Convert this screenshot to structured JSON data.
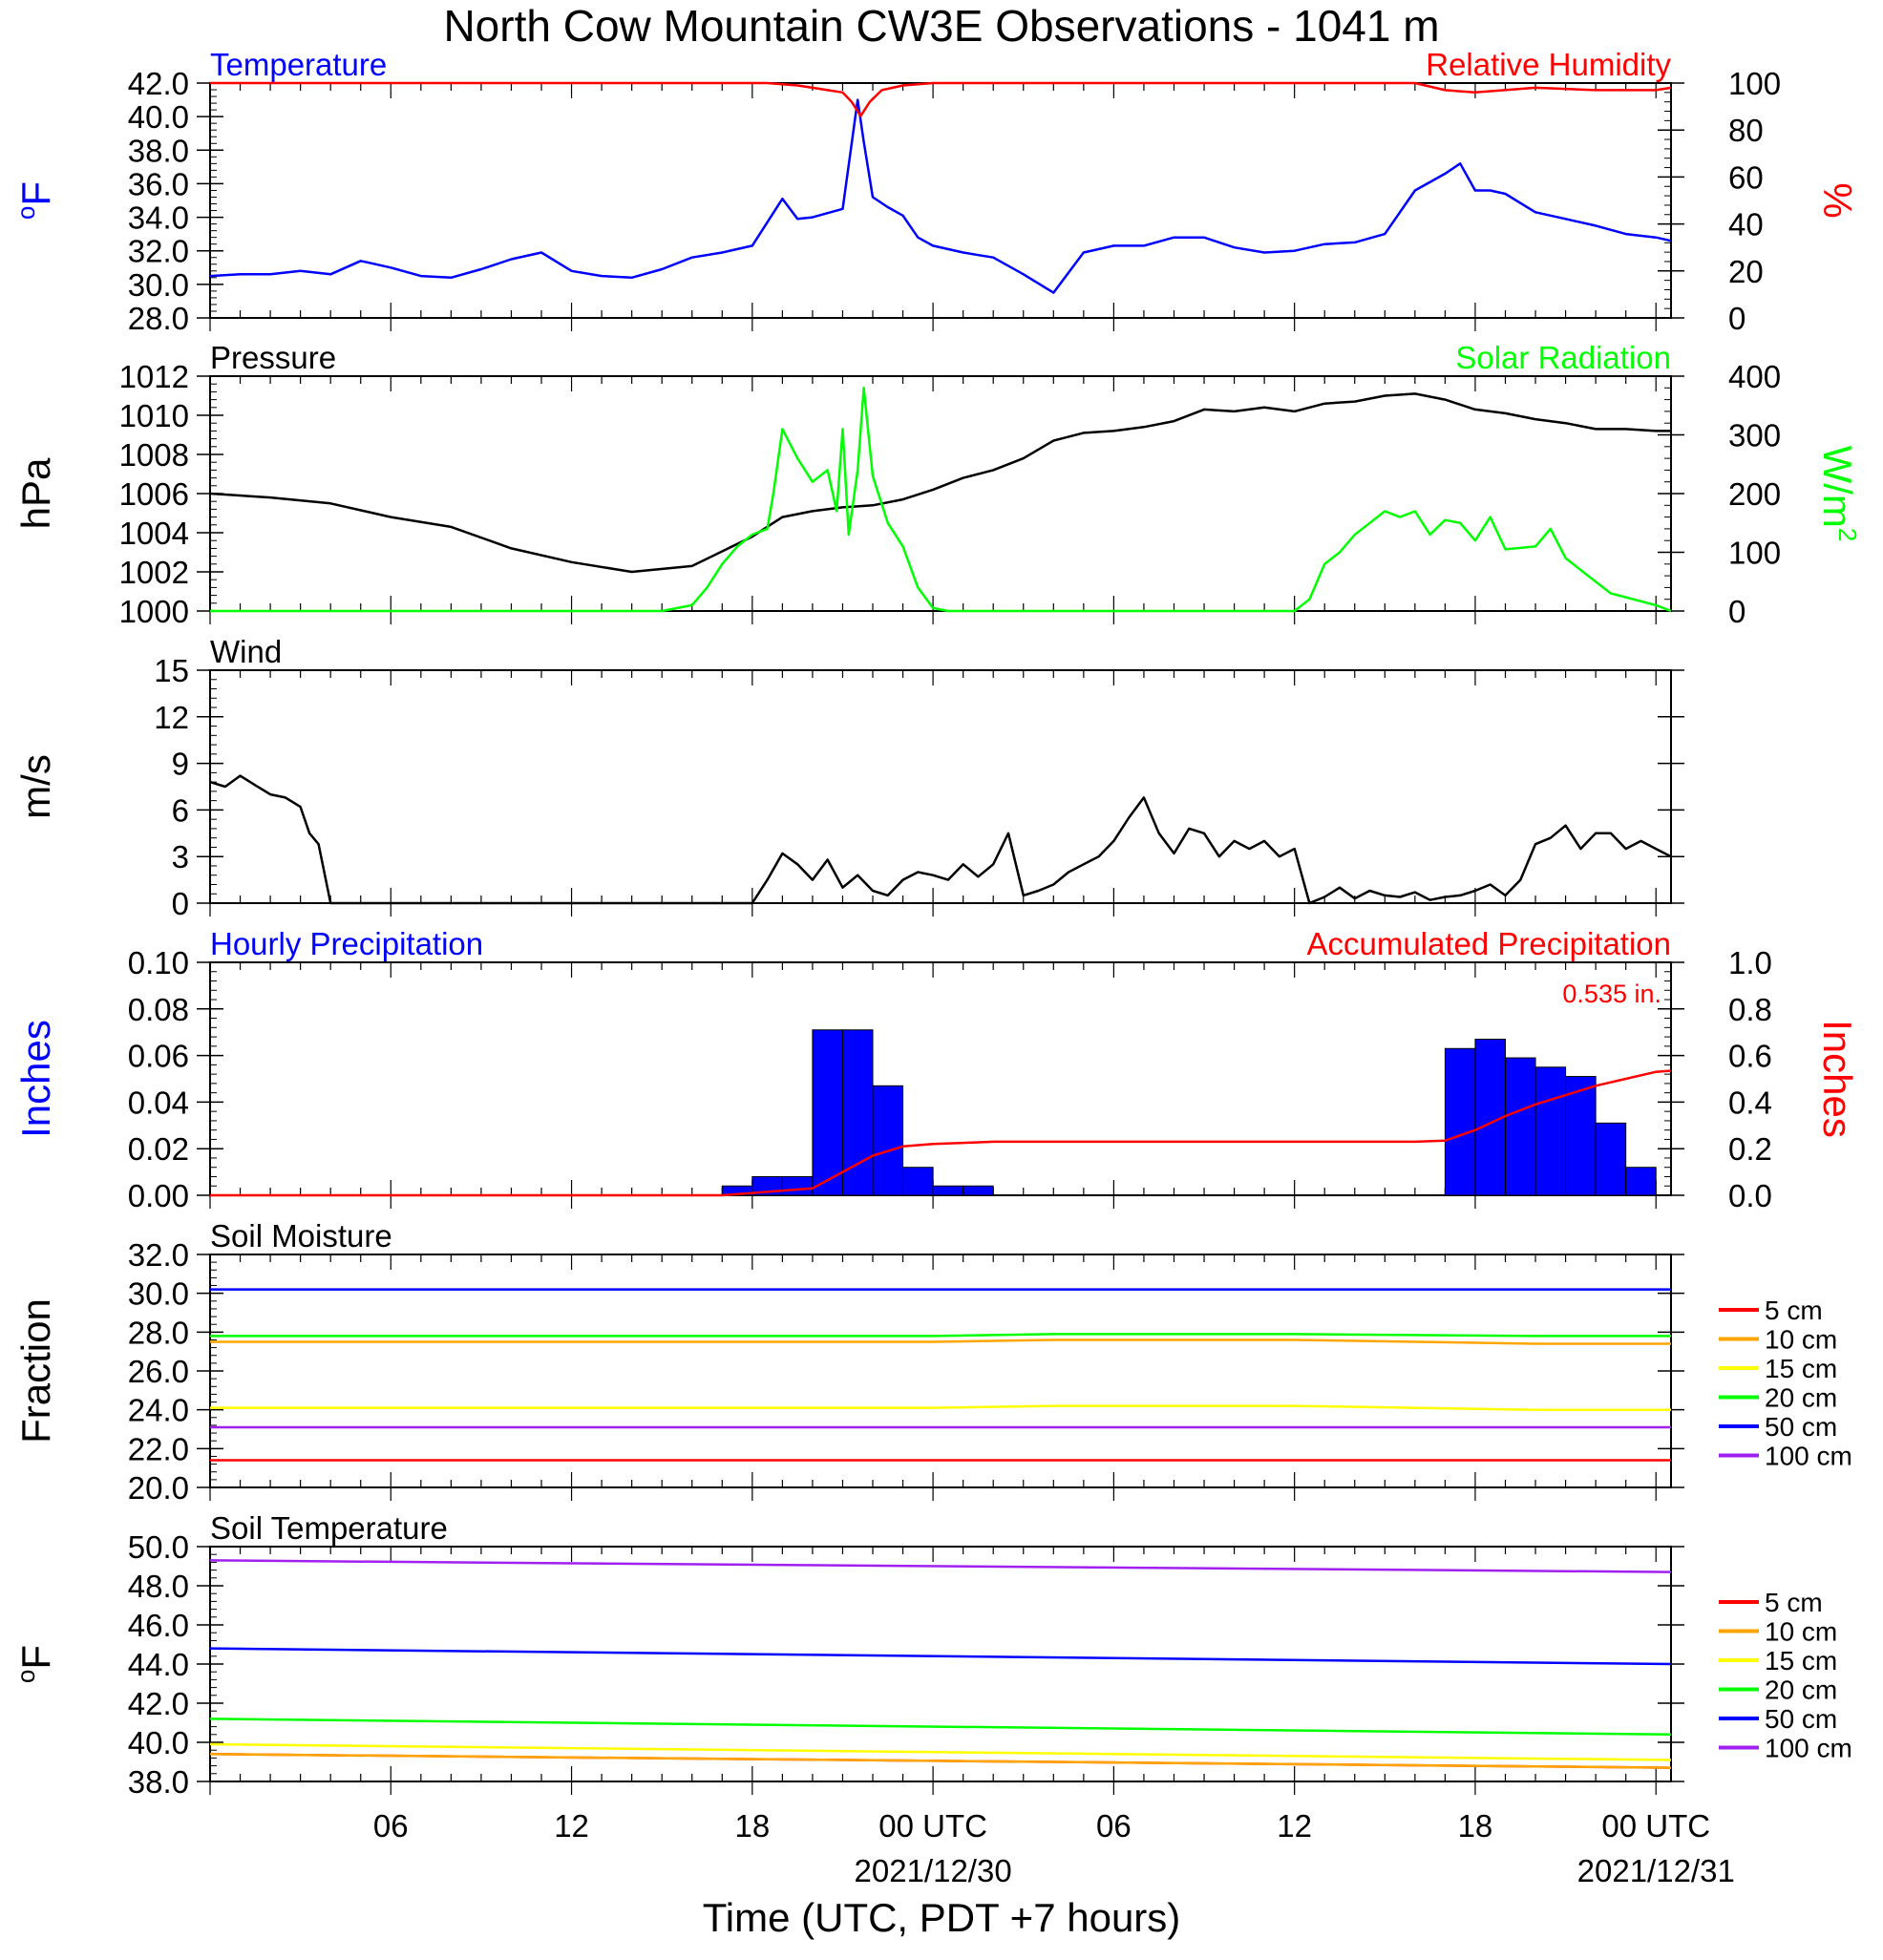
{
  "page": {
    "title": "North Cow Mountain CW3E Observations - 1041 m",
    "x_axis_title": "Time (UTC, PDT +7 hours)",
    "x_ticks": [
      "06",
      "12",
      "18",
      "00 UTC",
      "06",
      "12",
      "18",
      "00 UTC"
    ],
    "x_dates": [
      "2021/12/30",
      "2021/12/31"
    ]
  },
  "chart_data": [
    {
      "type": "line",
      "title": "Temperature",
      "title_right": "Relative Humidity",
      "ylabel": "oF",
      "ylabel_right": "%",
      "ylim": [
        28,
        42
      ],
      "y_ticks": [
        "28.0",
        "30.0",
        "32.0",
        "34.0",
        "36.0",
        "38.0",
        "40.0",
        "42.0"
      ],
      "ylim_right": [
        0,
        100
      ],
      "y_ticks_right": [
        "0",
        "20",
        "40",
        "60",
        "80",
        "100"
      ],
      "x_range_hours": [
        0,
        48.5
      ],
      "series": [
        {
          "name": "Temperature",
          "color": "#0000ff",
          "axis": "left",
          "x": [
            0,
            1,
            2,
            3,
            4,
            5,
            6,
            7,
            8,
            9,
            10,
            11,
            12,
            13,
            14,
            15,
            16,
            17,
            18,
            19,
            19.5,
            20,
            21,
            21.5,
            21.7,
            22,
            22.5,
            23,
            23.5,
            24,
            25,
            26,
            27,
            28,
            29,
            30,
            31,
            32,
            33,
            34,
            35,
            36,
            37,
            38,
            39,
            40,
            41,
            41.5,
            42,
            42.5,
            43,
            44,
            45,
            46,
            47,
            48,
            48.5
          ],
          "y": [
            30.5,
            30.6,
            30.6,
            30.8,
            30.6,
            31.4,
            31.0,
            30.5,
            30.4,
            30.9,
            31.5,
            31.9,
            30.8,
            30.5,
            30.4,
            30.9,
            31.6,
            31.9,
            32.3,
            35.1,
            33.9,
            34.0,
            34.5,
            41.0,
            38.5,
            35.2,
            34.6,
            34.1,
            32.8,
            32.3,
            31.9,
            31.6,
            30.6,
            29.5,
            31.9,
            32.3,
            32.3,
            32.8,
            32.8,
            32.2,
            31.9,
            32.0,
            32.4,
            32.5,
            33.0,
            35.6,
            36.6,
            37.2,
            35.6,
            35.6,
            35.4,
            34.3,
            33.9,
            33.5,
            33.0,
            32.8,
            32.6
          ]
        },
        {
          "name": "Relative Humidity",
          "color": "#ff0000",
          "axis": "right",
          "x": [
            0,
            16,
            18.5,
            19.5,
            20,
            20.5,
            21,
            21.3,
            21.6,
            21.9,
            22.3,
            23,
            24,
            30,
            36,
            38,
            40,
            41,
            42,
            44,
            46,
            48,
            48.5
          ],
          "y": [
            100,
            100,
            100,
            99,
            98,
            97,
            96,
            92,
            86,
            92,
            97,
            99,
            100,
            100,
            100,
            100,
            100,
            97,
            96,
            98,
            97,
            97,
            98
          ]
        }
      ]
    },
    {
      "type": "line",
      "title": "Pressure",
      "title_right": "Solar Radiation",
      "ylabel": "hPa",
      "ylabel_right": "W/m2",
      "ylim": [
        1000,
        1012
      ],
      "y_ticks": [
        "1000",
        "1002",
        "1004",
        "1006",
        "1008",
        "1010",
        "1012"
      ],
      "ylim_right": [
        0,
        400
      ],
      "y_ticks_right": [
        "0",
        "100",
        "200",
        "300",
        "400"
      ],
      "x_range_hours": [
        0,
        48.5
      ],
      "series": [
        {
          "name": "Pressure",
          "color": "#000000",
          "axis": "left",
          "x": [
            0,
            2,
            4,
            6,
            8,
            10,
            12,
            14,
            16,
            18,
            19,
            20,
            21,
            22,
            23,
            24,
            25,
            26,
            27,
            28,
            29,
            30,
            31,
            32,
            33,
            34,
            35,
            36,
            37,
            38,
            39,
            40,
            41,
            42,
            43,
            44,
            45,
            46,
            47,
            48,
            48.5
          ],
          "y": [
            1006.0,
            1005.8,
            1005.5,
            1004.8,
            1004.3,
            1003.2,
            1002.5,
            1002.0,
            1002.3,
            1003.8,
            1004.8,
            1005.1,
            1005.3,
            1005.4,
            1005.7,
            1006.2,
            1006.8,
            1007.2,
            1007.8,
            1008.7,
            1009.1,
            1009.2,
            1009.4,
            1009.7,
            1010.3,
            1010.2,
            1010.4,
            1010.2,
            1010.6,
            1010.7,
            1011.0,
            1011.1,
            1010.8,
            1010.3,
            1010.1,
            1009.8,
            1009.6,
            1009.3,
            1009.3,
            1009.2,
            1009.2
          ]
        },
        {
          "name": "Solar Radiation",
          "color": "#00ff00",
          "axis": "right",
          "x": [
            0,
            2,
            4,
            10,
            14,
            15,
            16,
            16.5,
            17,
            17.5,
            18,
            18.5,
            18.7,
            19,
            19.5,
            20,
            20.5,
            20.8,
            21,
            21.2,
            21.5,
            21.7,
            22,
            22.5,
            23,
            23.5,
            24,
            24.5,
            26,
            34,
            36,
            36.5,
            37,
            37.5,
            38,
            38.5,
            39,
            39.5,
            40,
            40.5,
            41,
            41.5,
            42,
            42.5,
            43,
            44,
            44.5,
            45,
            45.5,
            46,
            46.5,
            48,
            48.5
          ],
          "y": [
            0,
            0,
            0,
            0,
            0,
            0,
            10,
            40,
            80,
            110,
            130,
            140,
            200,
            310,
            260,
            220,
            240,
            170,
            310,
            130,
            240,
            380,
            230,
            150,
            110,
            40,
            5,
            0,
            0,
            0,
            0,
            20,
            80,
            100,
            130,
            150,
            170,
            160,
            170,
            130,
            155,
            150,
            120,
            160,
            105,
            110,
            140,
            90,
            70,
            50,
            30,
            10,
            0
          ]
        }
      ]
    },
    {
      "type": "line",
      "title": "Wind",
      "ylabel": "m/s",
      "ylim": [
        0,
        15
      ],
      "y_ticks": [
        "0",
        "3",
        "6",
        "9",
        "12",
        "15"
      ],
      "x_range_hours": [
        0,
        48.5
      ],
      "series": [
        {
          "name": "Wind",
          "color": "#000000",
          "axis": "left",
          "x": [
            0,
            0.5,
            1,
            1.5,
            2,
            2.5,
            3,
            3.3,
            3.6,
            4,
            10,
            17.5,
            18,
            18.5,
            19,
            19.5,
            20,
            20.5,
            21,
            21.5,
            22,
            22.5,
            23,
            23.5,
            24,
            24.5,
            25,
            25.5,
            26,
            26.5,
            27,
            27.5,
            28,
            28.5,
            29,
            29.5,
            30,
            30.5,
            31,
            31.5,
            32,
            32.5,
            33,
            33.5,
            34,
            34.5,
            35,
            35.5,
            36,
            36.5,
            37,
            37.5,
            38,
            38.5,
            39,
            39.5,
            40,
            40.5,
            41,
            41.5,
            42,
            42.5,
            43,
            43.5,
            44,
            44.5,
            45,
            45.5,
            46,
            46.5,
            47,
            47.5,
            48,
            48.5
          ],
          "y": [
            7.8,
            7.5,
            8.2,
            7.6,
            7.0,
            6.8,
            6.2,
            4.5,
            3.8,
            0,
            0,
            0,
            0,
            1.5,
            3.2,
            2.5,
            1.5,
            2.8,
            1.0,
            1.8,
            0.8,
            0.5,
            1.5,
            2.0,
            1.8,
            1.5,
            2.5,
            1.7,
            2.5,
            4.5,
            0.5,
            0.8,
            1.2,
            2.0,
            2.5,
            3.0,
            4.0,
            5.5,
            6.8,
            4.5,
            3.2,
            4.8,
            4.5,
            3.0,
            4.0,
            3.5,
            4.0,
            3.0,
            3.5,
            0.0,
            0.4,
            1.0,
            0.3,
            0.8,
            0.5,
            0.4,
            0.7,
            0.2,
            0.4,
            0.5,
            0.8,
            1.2,
            0.5,
            1.5,
            3.8,
            4.2,
            5.0,
            3.5,
            4.5,
            4.5,
            3.5,
            4.0,
            3.5,
            3.0
          ]
        }
      ]
    },
    {
      "type": "bar",
      "title": "Hourly Precipitation",
      "title_right": "Accumulated Precipitation",
      "annotation": "0.535 in.",
      "ylabel": "Inches",
      "ylabel_right": "Inches",
      "ylim": [
        0,
        0.1
      ],
      "y_ticks": [
        "0.00",
        "0.02",
        "0.04",
        "0.06",
        "0.08",
        "0.10"
      ],
      "ylim_right": [
        0,
        1.0
      ],
      "y_ticks_right": [
        "0.0",
        "0.2",
        "0.4",
        "0.6",
        "0.8",
        "1.0"
      ],
      "x_range_hours": [
        0,
        48.5
      ],
      "bars": {
        "name": "Hourly Precipitation",
        "color": "#0000ff",
        "hour_start": [
          17,
          18,
          19,
          20,
          21,
          22,
          23,
          24,
          25,
          41,
          42,
          43,
          44,
          45,
          46,
          47
        ],
        "values": [
          0.004,
          0.008,
          0.008,
          0.071,
          0.071,
          0.047,
          0.012,
          0.004,
          0.004,
          0.063,
          0.067,
          0.059,
          0.055,
          0.051,
          0.031,
          0.012
        ]
      },
      "series": [
        {
          "name": "Accumulated Precipitation",
          "color": "#ff0000",
          "axis": "right",
          "x": [
            0,
            17,
            18,
            19,
            20,
            21,
            22,
            23,
            24,
            25,
            26,
            30,
            40,
            41,
            42,
            43,
            44,
            45,
            46,
            47,
            48,
            48.5
          ],
          "y": [
            0,
            0,
            0.01,
            0.02,
            0.03,
            0.1,
            0.17,
            0.21,
            0.22,
            0.225,
            0.23,
            0.23,
            0.23,
            0.235,
            0.28,
            0.34,
            0.39,
            0.43,
            0.47,
            0.5,
            0.53,
            0.535
          ]
        }
      ]
    },
    {
      "type": "line",
      "title": "Soil Moisture",
      "ylabel": "Fraction",
      "ylim": [
        20,
        32
      ],
      "y_ticks": [
        "20.0",
        "22.0",
        "24.0",
        "26.0",
        "28.0",
        "30.0",
        "32.0"
      ],
      "x_range_hours": [
        0,
        48.5
      ],
      "legend": [
        "5 cm",
        "10 cm",
        "15 cm",
        "20 cm",
        "50 cm",
        "100 cm"
      ],
      "series": [
        {
          "name": "5 cm",
          "color": "#ff0000",
          "x": [
            0,
            48.5
          ],
          "y": [
            21.4,
            21.4
          ]
        },
        {
          "name": "10 cm",
          "color": "#ffa500",
          "x": [
            0,
            24,
            28,
            36,
            44,
            48.5
          ],
          "y": [
            27.5,
            27.5,
            27.6,
            27.6,
            27.4,
            27.4
          ]
        },
        {
          "name": "15 cm",
          "color": "#ffff00",
          "x": [
            0,
            24,
            28,
            36,
            44,
            48.5
          ],
          "y": [
            24.1,
            24.1,
            24.2,
            24.2,
            24.0,
            24.0
          ]
        },
        {
          "name": "20 cm",
          "color": "#00ff00",
          "x": [
            0,
            24,
            28,
            36,
            44,
            48.5
          ],
          "y": [
            27.8,
            27.8,
            27.9,
            27.9,
            27.8,
            27.8
          ]
        },
        {
          "name": "50 cm",
          "color": "#0000ff",
          "x": [
            0,
            48.5
          ],
          "y": [
            30.2,
            30.2
          ]
        },
        {
          "name": "100 cm",
          "color": "#a020f0",
          "x": [
            0,
            48.5
          ],
          "y": [
            23.1,
            23.1
          ]
        }
      ]
    },
    {
      "type": "line",
      "title": "Soil Temperature",
      "ylabel": "oF",
      "ylim": [
        38,
        50
      ],
      "y_ticks": [
        "38.0",
        "40.0",
        "42.0",
        "44.0",
        "46.0",
        "48.0",
        "50.0"
      ],
      "x_range_hours": [
        0,
        48.5
      ],
      "legend": [
        "5 cm",
        "10 cm",
        "15 cm",
        "20 cm",
        "50 cm",
        "100 cm"
      ],
      "series": [
        {
          "name": "5 cm",
          "color": "#ff0000",
          "x": [
            0,
            48.5
          ],
          "y": [
            39.4,
            38.7
          ]
        },
        {
          "name": "10 cm",
          "color": "#ffa500",
          "x": [
            0,
            48.5
          ],
          "y": [
            39.4,
            38.7
          ]
        },
        {
          "name": "15 cm",
          "color": "#ffff00",
          "x": [
            0,
            48.5
          ],
          "y": [
            39.9,
            39.1
          ]
        },
        {
          "name": "20 cm",
          "color": "#00ff00",
          "x": [
            0,
            48.5
          ],
          "y": [
            41.2,
            40.4
          ]
        },
        {
          "name": "50 cm",
          "color": "#0000ff",
          "x": [
            0,
            48.5
          ],
          "y": [
            44.8,
            44.0
          ]
        },
        {
          "name": "100 cm",
          "color": "#a020f0",
          "x": [
            0,
            48.5
          ],
          "y": [
            49.3,
            48.7
          ]
        }
      ]
    }
  ]
}
